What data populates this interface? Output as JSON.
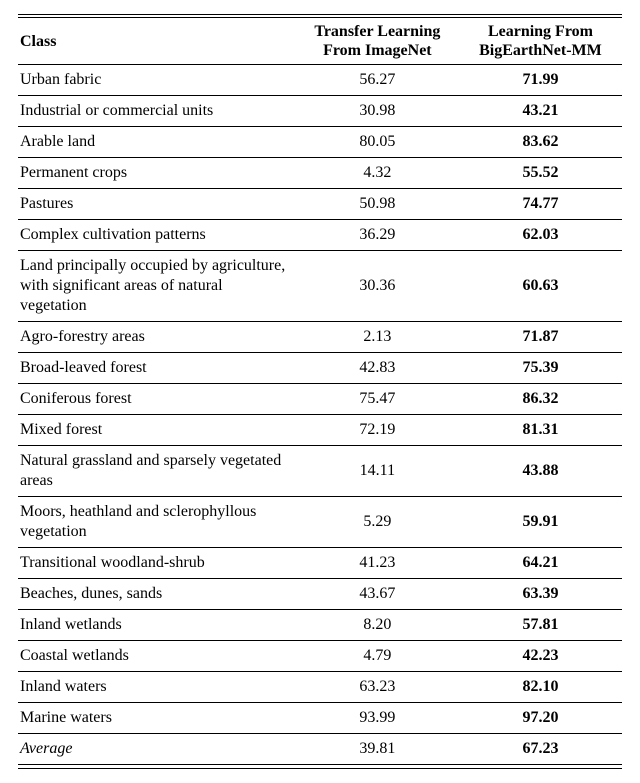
{
  "table": {
    "type": "table",
    "background_color": "#ffffff",
    "text_color": "#000000",
    "font_family": "Times New Roman",
    "header_fontsize": 16,
    "body_fontsize": 16,
    "rule_color": "#000000",
    "columns": [
      {
        "label": "Class",
        "align": "left",
        "width_pct": 46
      },
      {
        "label_line1": "Transfer Learning",
        "label_line2": "From ImageNet",
        "align": "center",
        "width_pct": 27
      },
      {
        "label_line1": "Learning From",
        "label_line2": "BigEarthNet-MM",
        "align": "center",
        "width_pct": 27
      }
    ],
    "rows": [
      {
        "class": "Urban fabric",
        "imagenet": "56.27",
        "bigearth": "71.99"
      },
      {
        "class": "Industrial or commercial units",
        "imagenet": "30.98",
        "bigearth": "43.21"
      },
      {
        "class": "Arable land",
        "imagenet": "80.05",
        "bigearth": "83.62"
      },
      {
        "class": "Permanent crops",
        "imagenet": "4.32",
        "bigearth": "55.52"
      },
      {
        "class": "Pastures",
        "imagenet": "50.98",
        "bigearth": "74.77"
      },
      {
        "class": "Complex cultivation patterns",
        "imagenet": "36.29",
        "bigearth": "62.03"
      },
      {
        "class": "Land principally occupied by agriculture, with significant areas of natural vegetation",
        "imagenet": "30.36",
        "bigearth": "60.63"
      },
      {
        "class": "Agro-forestry areas",
        "imagenet": "2.13",
        "bigearth": "71.87"
      },
      {
        "class": "Broad-leaved forest",
        "imagenet": "42.83",
        "bigearth": "75.39"
      },
      {
        "class": "Coniferous forest",
        "imagenet": "75.47",
        "bigearth": "86.32"
      },
      {
        "class": "Mixed forest",
        "imagenet": "72.19",
        "bigearth": "81.31"
      },
      {
        "class": "Natural grassland and sparsely vegetated areas",
        "imagenet": "14.11",
        "bigearth": "43.88"
      },
      {
        "class": "Moors, heathland and sclerophyllous vegetation",
        "imagenet": "5.29",
        "bigearth": "59.91"
      },
      {
        "class": "Transitional woodland-shrub",
        "imagenet": "41.23",
        "bigearth": "64.21"
      },
      {
        "class": "Beaches, dunes, sands",
        "imagenet": "43.67",
        "bigearth": "63.39"
      },
      {
        "class": "Inland wetlands",
        "imagenet": "8.20",
        "bigearth": "57.81"
      },
      {
        "class": "Coastal wetlands",
        "imagenet": "4.79",
        "bigearth": "42.23"
      },
      {
        "class": "Inland waters",
        "imagenet": "63.23",
        "bigearth": "82.10"
      },
      {
        "class": "Marine waters",
        "imagenet": "93.99",
        "bigearth": "97.20"
      }
    ],
    "summary": {
      "label": "Average",
      "imagenet": "39.81",
      "bigearth": "67.23"
    },
    "bold_column_index": 2
  }
}
